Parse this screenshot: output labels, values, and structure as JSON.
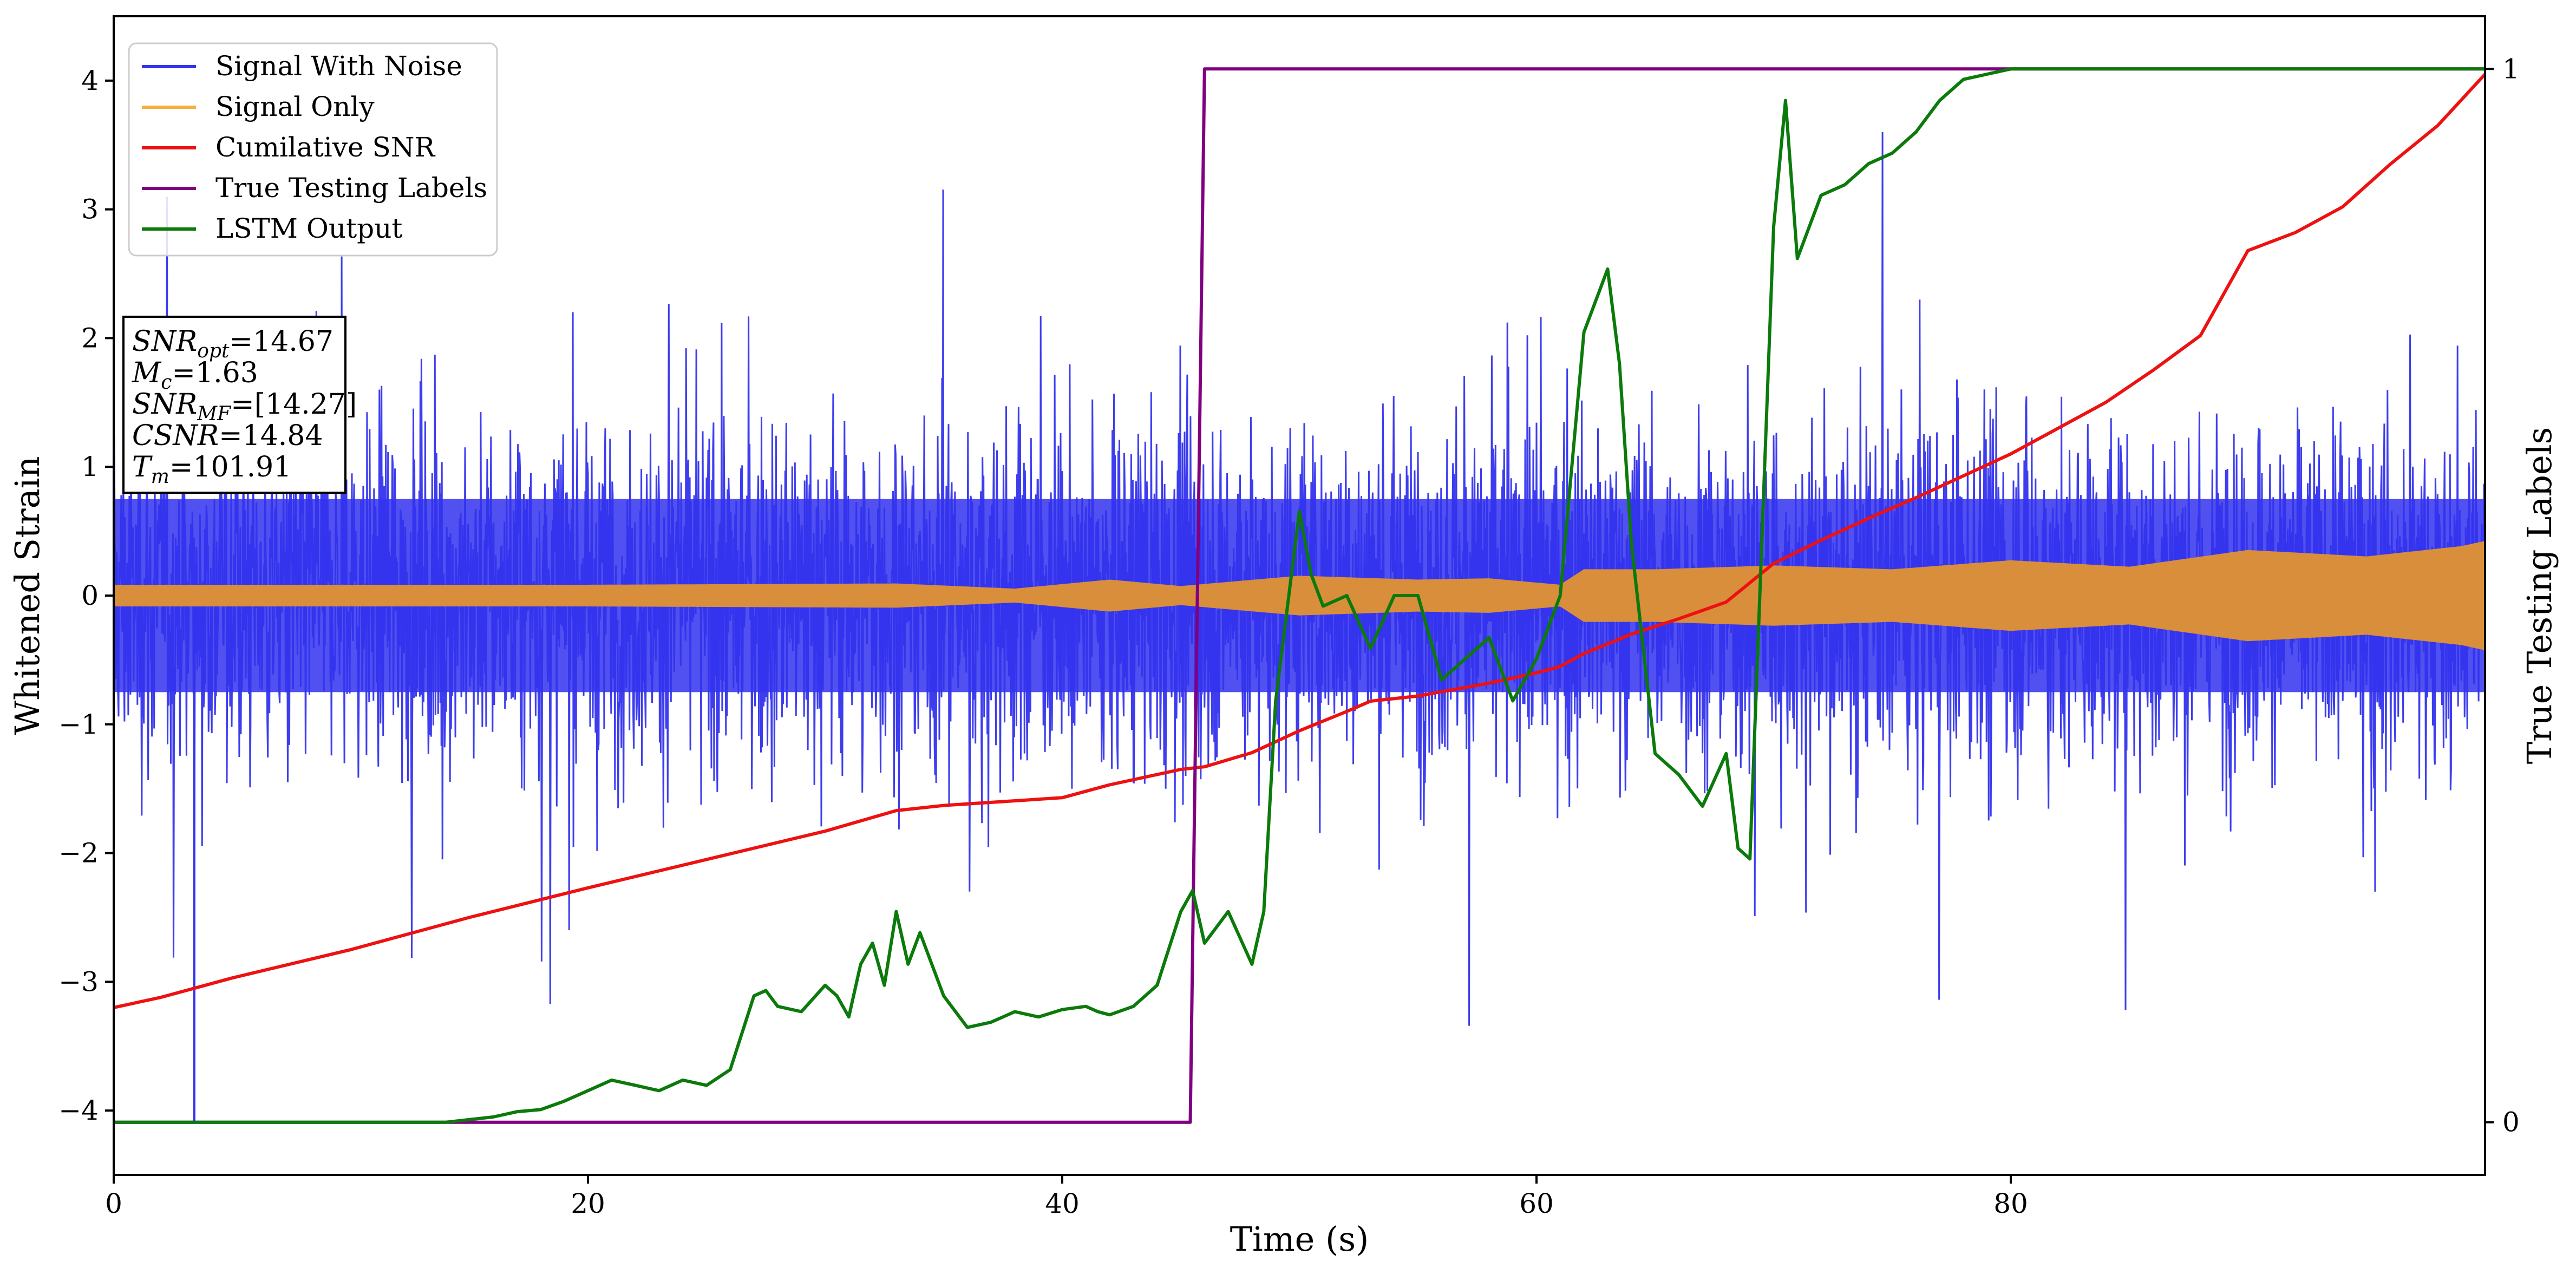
{
  "chart_data": {
    "type": "line",
    "xlabel": "Time (s)",
    "ylabel": "Whitened Strain",
    "y2label": "True Testing Labels",
    "xlim": [
      0,
      100
    ],
    "ylim": [
      -4.5,
      4.5
    ],
    "y2lim": [
      -0.05,
      1.05
    ],
    "x_ticks": [
      0,
      20,
      40,
      60,
      80
    ],
    "y_ticks": [
      -4,
      -3,
      -2,
      -1,
      0,
      1,
      2,
      3,
      4
    ],
    "y2_ticks": [
      0,
      1
    ],
    "grid": false,
    "legend_position": "top-left",
    "series": [
      {
        "name": "Signal With Noise",
        "color": "#3333ee",
        "axis": "left",
        "kind": "noise",
        "upper_envelope": [
          2.6,
          3.3
        ],
        "lower_envelope": [
          -2.6,
          -3.3
        ],
        "x": [
          3.4
        ],
        "y": [
          -4.1
        ]
      },
      {
        "name": "Signal Only",
        "color": "#f5b041",
        "fill_color": "#d88e3a",
        "axis": "left",
        "kind": "envelope",
        "x": [
          0,
          20,
          33,
          38,
          42,
          45,
          50,
          55,
          58,
          61,
          62,
          65,
          70,
          75,
          80,
          85,
          90,
          95,
          99,
          100
        ],
        "amplitude": [
          0.08,
          0.08,
          0.09,
          0.05,
          0.12,
          0.07,
          0.15,
          0.12,
          0.13,
          0.08,
          0.2,
          0.2,
          0.23,
          0.2,
          0.27,
          0.22,
          0.35,
          0.3,
          0.38,
          0.42
        ]
      },
      {
        "name": "Cumilative SNR",
        "color": "#ee1111",
        "axis": "left",
        "x": [
          0,
          2,
          5,
          10,
          15,
          20,
          25,
          30,
          33,
          35,
          40,
          42,
          45,
          46,
          48,
          50,
          52,
          53,
          55,
          58,
          60,
          61,
          62,
          64,
          66,
          68,
          70,
          72,
          74,
          76,
          78,
          80,
          82,
          84,
          86,
          88,
          90,
          92,
          94,
          96,
          98,
          100
        ],
        "y": [
          -3.2,
          -3.12,
          -2.97,
          -2.75,
          -2.5,
          -2.27,
          -2.05,
          -1.83,
          -1.67,
          -1.63,
          -1.57,
          -1.47,
          -1.35,
          -1.33,
          -1.22,
          -1.05,
          -0.9,
          -0.82,
          -0.78,
          -0.68,
          -0.6,
          -0.55,
          -0.45,
          -0.3,
          -0.18,
          -0.05,
          0.25,
          0.43,
          0.6,
          0.76,
          0.93,
          1.1,
          1.3,
          1.5,
          1.75,
          2.02,
          2.68,
          2.82,
          3.02,
          3.35,
          3.65,
          4.05
        ]
      },
      {
        "name": "True Testing Labels",
        "color": "#800080",
        "axis": "right",
        "x": [
          0,
          45.4,
          46.0,
          100
        ],
        "y": [
          0,
          0,
          1,
          1
        ]
      },
      {
        "name": "LSTM Output",
        "color": "#0b7a0b",
        "axis": "right",
        "x": [
          0,
          14,
          16,
          17,
          18,
          19,
          20,
          21,
          22,
          23,
          24,
          25,
          26,
          27,
          27.5,
          28,
          29,
          30,
          30.5,
          31,
          31.5,
          32,
          32.5,
          33,
          33.5,
          34,
          35,
          36,
          37,
          37.5,
          38,
          39,
          40,
          41,
          41.5,
          42,
          43,
          44,
          45,
          45.5,
          46,
          47,
          48,
          48.5,
          49,
          50,
          50.5,
          51,
          52,
          53,
          54,
          55,
          56,
          57,
          58,
          59,
          60,
          61,
          62,
          63,
          63.5,
          64,
          65,
          66,
          67,
          68,
          68.5,
          69,
          70,
          70.5,
          71,
          72,
          73,
          74,
          75,
          76,
          77,
          78,
          79,
          80,
          81,
          82,
          84,
          100
        ],
        "y": [
          0,
          0,
          0.005,
          0.01,
          0.012,
          0.02,
          0.03,
          0.04,
          0.035,
          0.03,
          0.04,
          0.035,
          0.05,
          0.12,
          0.125,
          0.11,
          0.105,
          0.13,
          0.12,
          0.1,
          0.15,
          0.17,
          0.13,
          0.2,
          0.15,
          0.18,
          0.12,
          0.09,
          0.095,
          0.1,
          0.105,
          0.1,
          0.107,
          0.11,
          0.105,
          0.102,
          0.11,
          0.13,
          0.2,
          0.22,
          0.17,
          0.2,
          0.15,
          0.2,
          0.4,
          0.58,
          0.52,
          0.49,
          0.5,
          0.45,
          0.5,
          0.5,
          0.42,
          0.44,
          0.46,
          0.4,
          0.44,
          0.5,
          0.75,
          0.81,
          0.72,
          0.55,
          0.35,
          0.33,
          0.3,
          0.35,
          0.26,
          0.25,
          0.85,
          0.97,
          0.82,
          0.88,
          0.89,
          0.91,
          0.92,
          0.94,
          0.97,
          0.99,
          0.995,
          1.0,
          1.0,
          1.0,
          1.0,
          1.0
        ]
      }
    ],
    "annotation": {
      "lines": [
        {
          "base": "SNR",
          "sub": "opt",
          "value": "=14.67"
        },
        {
          "base": "M",
          "sub": "c",
          "value": "=1.63"
        },
        {
          "base": "SNR",
          "sub": "MF",
          "value": "=[14.27]"
        },
        {
          "base": "CSNR",
          "sub": "",
          "value": "=14.84"
        },
        {
          "base": "T",
          "sub": "m",
          "value": "=101.91"
        }
      ]
    }
  }
}
